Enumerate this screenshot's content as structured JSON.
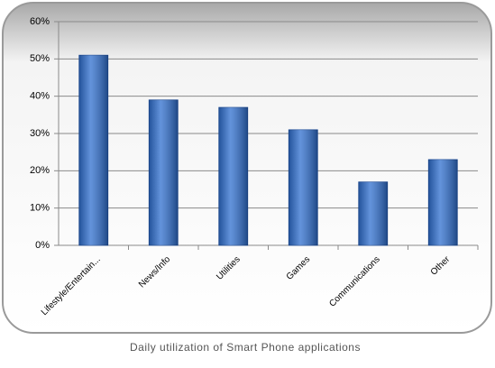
{
  "chart_data": {
    "type": "bar",
    "title": "Daily utilization of Smart Phone applications",
    "categories": [
      "Lifestyle/Entertain...",
      "News/Info",
      "Utilities",
      "Games",
      "Communications",
      "Other"
    ],
    "values": [
      51,
      39,
      37,
      31,
      17,
      23
    ],
    "color": "#2f6fcf",
    "ylim": [
      0,
      60
    ],
    "yticks": [
      {
        "value": 0,
        "label": "0%"
      },
      {
        "value": 10,
        "label": "10%"
      },
      {
        "value": 20,
        "label": "20%"
      },
      {
        "value": 30,
        "label": "30%"
      },
      {
        "value": 40,
        "label": "40%"
      },
      {
        "value": 50,
        "label": "50%"
      },
      {
        "value": 60,
        "label": "60%"
      }
    ],
    "grid": true
  }
}
